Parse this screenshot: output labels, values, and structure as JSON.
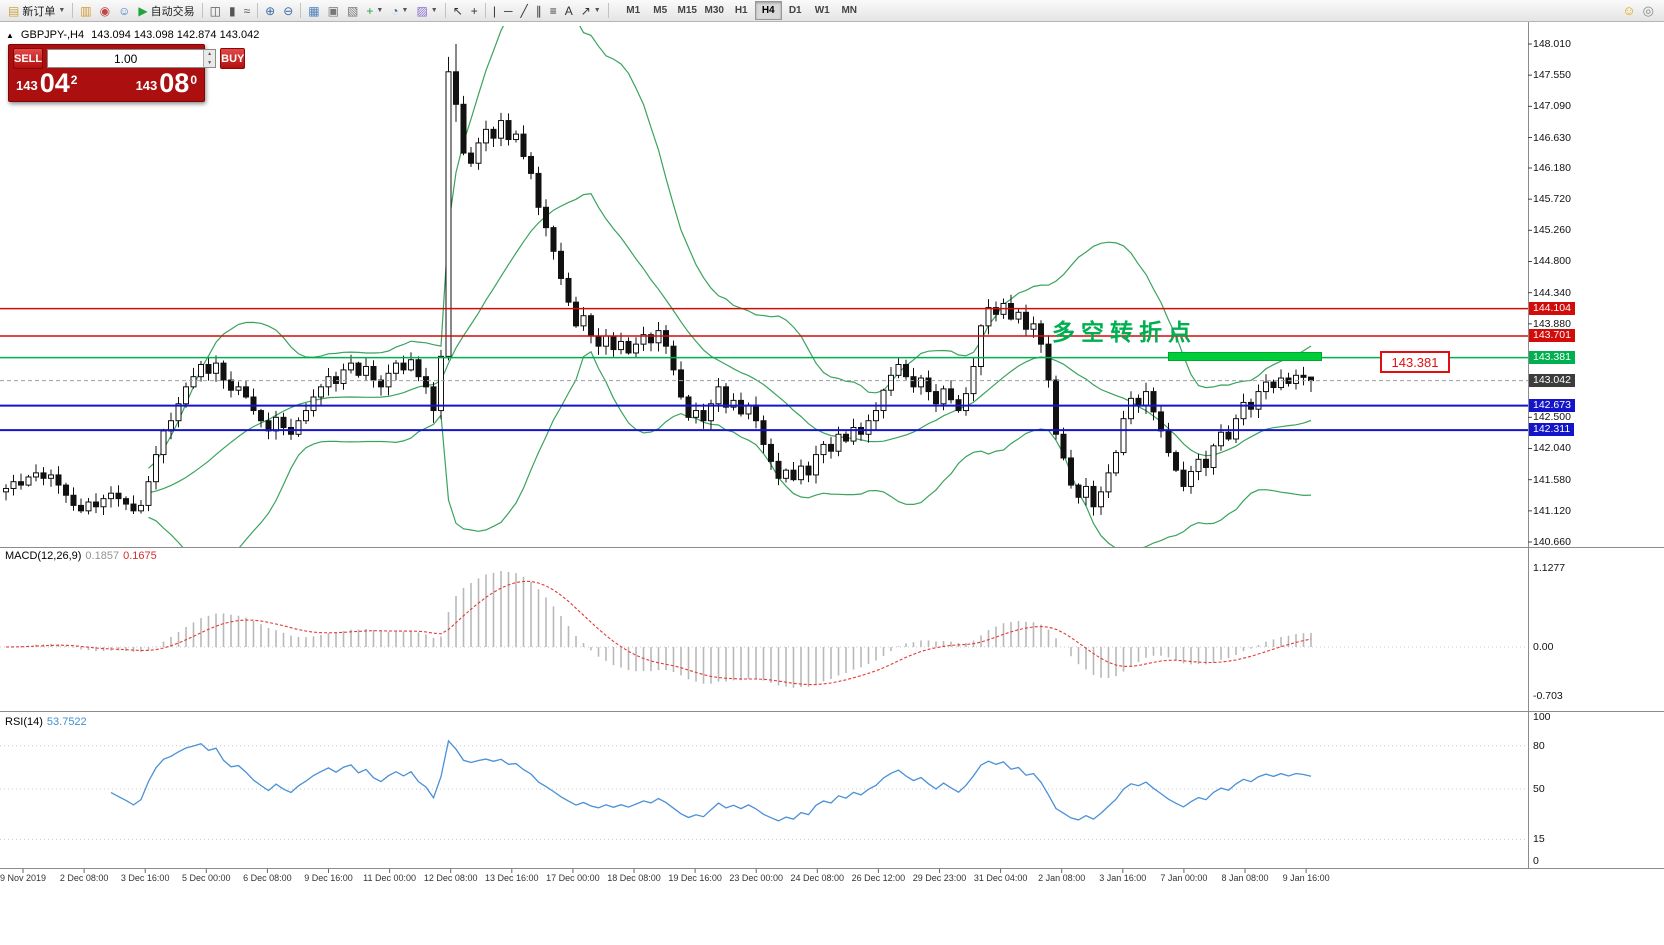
{
  "toolbar": {
    "items": [
      {
        "name": "new-order-button",
        "glyph": "▤",
        "glyph_color": "#caa53d",
        "label": "新订单",
        "dropdown": true
      },
      {
        "name": "separator"
      },
      {
        "name": "profiles-button",
        "glyph": "▥",
        "glyph_color": "#d19a2f"
      },
      {
        "name": "alerts-button",
        "glyph": "◉",
        "glyph_color": "#c04545"
      },
      {
        "name": "support-button",
        "glyph": "☺",
        "glyph_color": "#3f7fbf"
      },
      {
        "name": "autotrade-button",
        "glyph": "▶",
        "glyph_color": "#23a43b",
        "label": "自动交易"
      },
      {
        "name": "separator"
      },
      {
        "name": "bar-chart-button",
        "glyph": "◫",
        "glyph_color": "#555555"
      },
      {
        "name": "candlestick-button",
        "glyph": "▮",
        "glyph_color": "#555555"
      },
      {
        "name": "line-chart-button",
        "glyph": "≈",
        "glyph_color": "#555555"
      },
      {
        "name": "separator"
      },
      {
        "name": "zoom-in-button",
        "glyph": "⊕",
        "glyph_color": "#3b6ea5"
      },
      {
        "name": "zoom-out-button",
        "glyph": "⊖",
        "glyph_color": "#3b6ea5"
      },
      {
        "name": "separator"
      },
      {
        "name": "tile-windows-button",
        "glyph": "▦",
        "glyph_color": "#4a7ebb"
      },
      {
        "name": "data-window-button",
        "glyph": "▣",
        "glyph_color": "#777777"
      },
      {
        "name": "strategy-tester-button",
        "glyph": "▧",
        "glyph_color": "#777777"
      },
      {
        "name": "add-indicator-button",
        "glyph": "+",
        "glyph_color": "#23a43b",
        "dropdown": true
      },
      {
        "name": "period-button",
        "glyph": "◔",
        "glyph_color": "#3b6ea5",
        "dropdown": true
      },
      {
        "name": "template-button",
        "glyph": "▨",
        "glyph_color": "#8a6ecf",
        "dropdown": true
      },
      {
        "name": "separator"
      },
      {
        "name": "cursor-button",
        "glyph": "↖",
        "glyph_color": "#333333"
      },
      {
        "name": "crosshair-button",
        "glyph": "+",
        "glyph_color": "#333333"
      },
      {
        "name": "separator"
      },
      {
        "name": "vertical-line-button",
        "glyph": "|",
        "glyph_color": "#333333"
      },
      {
        "name": "horizontal-line-button",
        "glyph": "─",
        "glyph_color": "#333333"
      },
      {
        "name": "trendline-button",
        "glyph": "╱",
        "glyph_color": "#333333"
      },
      {
        "name": "channel-button",
        "glyph": "∥",
        "glyph_color": "#333333"
      },
      {
        "name": "fibonacci-button",
        "glyph": "≡",
        "glyph_color": "#333333"
      },
      {
        "name": "text-button",
        "glyph": "A",
        "glyph_color": "#333333"
      },
      {
        "name": "arrows-button",
        "glyph": "↗",
        "glyph_color": "#333333",
        "dropdown": true
      },
      {
        "name": "separator"
      }
    ],
    "timeframes": [
      "M1",
      "M5",
      "M15",
      "M30",
      "H1",
      "H4",
      "D1",
      "W1",
      "MN"
    ],
    "active_timeframe": "H4",
    "corner_icons": [
      {
        "name": "community-icon",
        "glyph": "☺",
        "glyph_color": "#e0a800"
      },
      {
        "name": "search-icon",
        "glyph": "◎",
        "glyph_color": "#888888"
      }
    ]
  },
  "chart": {
    "symbol": "GBPJPY-,H4",
    "ohlc": "143.094 143.098 142.874 143.042",
    "annotation": "多空转折点",
    "annotation_color": "#00b050",
    "callout": "143.381",
    "highlight_color": "#00cd3a",
    "levels": [
      {
        "value": 144.104,
        "label": "144.104",
        "color": "#d20b0b",
        "width": 1.5
      },
      {
        "value": 143.701,
        "label": "143.701",
        "color": "#d20b0b",
        "width": 1.5
      },
      {
        "value": 143.381,
        "label": "143.381",
        "color": "#00b050",
        "width": 1.5
      },
      {
        "value": 142.673,
        "label": "142.673",
        "color": "#1414c8",
        "width": 2
      },
      {
        "value": 142.311,
        "label": "142.311",
        "color": "#1414c8",
        "width": 2
      }
    ],
    "current_price": {
      "value": 143.042,
      "label": "143.042",
      "color": "#3c3c3c"
    },
    "price_ticks": [
      "148.010",
      "147.550",
      "147.090",
      "146.630",
      "146.180",
      "145.720",
      "145.260",
      "144.800",
      "144.340",
      "143.880",
      "142.500",
      "142.040",
      "141.580",
      "141.120",
      "140.660"
    ],
    "time_labels": [
      "9 Nov 2019",
      "2 Dec 08:00",
      "3 Dec 16:00",
      "5 Dec 00:00",
      "6 Dec 08:00",
      "9 Dec 16:00",
      "11 Dec 00:00",
      "12 Dec 08:00",
      "13 Dec 16:00",
      "17 Dec 00:00",
      "18 Dec 08:00",
      "19 Dec 16:00",
      "23 Dec 00:00",
      "24 Dec 08:00",
      "26 Dec 12:00",
      "29 Dec 23:00",
      "31 Dec 04:00",
      "2 Jan 08:00",
      "3 Jan 16:00",
      "7 Jan 00:00",
      "8 Jan 08:00",
      "9 Jan 16:00"
    ]
  },
  "trade_panel": {
    "sell_label": "SELL",
    "buy_label": "BUY",
    "volume": "1.00",
    "sell_big": "143",
    "sell_main": "04",
    "sell_sup": "2",
    "buy_big": "143",
    "buy_main": "08",
    "buy_sup": "0"
  },
  "macd": {
    "title": "MACD(12,26,9)",
    "value_main": "0.1857",
    "value_signal": "0.1675",
    "axis_labels": [
      "1.1277",
      "0.00",
      "-0.703"
    ],
    "histogram_color": "#b9b9b9",
    "signal_color": "#e53935"
  },
  "rsi": {
    "title": "RSI(14)",
    "value": "53.7522",
    "axis_labels": [
      "100",
      "80",
      "50",
      "15",
      "0"
    ],
    "levels": [
      80,
      50,
      15
    ],
    "line_color": "#4a90d9"
  },
  "chart_data": {
    "type": "candlestick",
    "symbol": "GBPJPY-",
    "period": "H4",
    "title": "GBPJPY- H4 with Bollinger Bands, MACD(12,26,9), RSI(14)",
    "ylim": [
      140.66,
      148.01
    ],
    "open_first": 141.4,
    "closes": [
      141.45,
      141.55,
      141.5,
      141.62,
      141.68,
      141.6,
      141.65,
      141.5,
      141.35,
      141.2,
      141.12,
      141.25,
      141.18,
      141.3,
      141.38,
      141.3,
      141.22,
      141.12,
      141.2,
      141.55,
      141.95,
      142.3,
      142.45,
      142.7,
      142.95,
      143.1,
      143.28,
      143.15,
      143.3,
      143.05,
      142.9,
      142.95,
      142.8,
      142.6,
      142.45,
      142.3,
      142.5,
      142.35,
      142.25,
      142.45,
      142.6,
      142.8,
      142.95,
      143.1,
      143.0,
      143.2,
      143.3,
      143.12,
      143.25,
      143.05,
      142.95,
      143.15,
      143.3,
      143.2,
      143.35,
      143.1,
      142.95,
      142.6,
      143.4,
      147.6,
      147.12,
      146.4,
      146.25,
      146.55,
      146.75,
      146.62,
      146.88,
      146.6,
      146.68,
      146.35,
      146.1,
      145.6,
      145.3,
      144.95,
      144.55,
      144.2,
      143.85,
      144.0,
      143.7,
      143.55,
      143.7,
      143.5,
      143.62,
      143.45,
      143.58,
      143.72,
      143.6,
      143.78,
      143.55,
      143.2,
      142.8,
      142.5,
      142.6,
      142.45,
      142.7,
      142.95,
      142.65,
      142.75,
      142.55,
      142.68,
      142.45,
      142.1,
      141.85,
      141.6,
      141.72,
      141.58,
      141.78,
      141.65,
      141.95,
      142.1,
      142.0,
      142.25,
      142.15,
      142.35,
      142.25,
      142.45,
      142.6,
      142.9,
      143.12,
      143.28,
      143.1,
      142.95,
      143.08,
      142.88,
      142.7,
      142.92,
      142.76,
      142.6,
      142.85,
      143.25,
      143.85,
      144.12,
      144.02,
      144.18,
      143.95,
      144.05,
      143.8,
      143.88,
      143.58,
      143.05,
      142.25,
      141.9,
      141.5,
      141.32,
      141.48,
      141.18,
      141.4,
      141.68,
      141.98,
      142.48,
      142.78,
      142.68,
      142.88,
      142.58,
      142.3,
      141.98,
      141.72,
      141.48,
      141.7,
      141.88,
      141.76,
      142.08,
      142.28,
      142.18,
      142.48,
      142.72,
      142.62,
      142.88,
      143.02,
      142.94,
      143.08,
      143.0,
      143.12,
      143.09,
      143.042
    ],
    "overrides": {
      "57": [
        142.95,
        143.02,
        142.42,
        142.6
      ],
      "59": [
        143.4,
        147.82,
        143.34,
        147.6
      ],
      "60": [
        147.6,
        148.01,
        146.86,
        147.12
      ],
      "174": [
        143.094,
        143.098,
        142.874,
        143.042
      ]
    },
    "indicators": {
      "bollinger": {
        "period": 20,
        "deviation": 2,
        "color": "#3aa35c"
      },
      "macd": {
        "fast": 12,
        "slow": 26,
        "signal": 9
      },
      "rsi": {
        "period": 14
      }
    }
  }
}
